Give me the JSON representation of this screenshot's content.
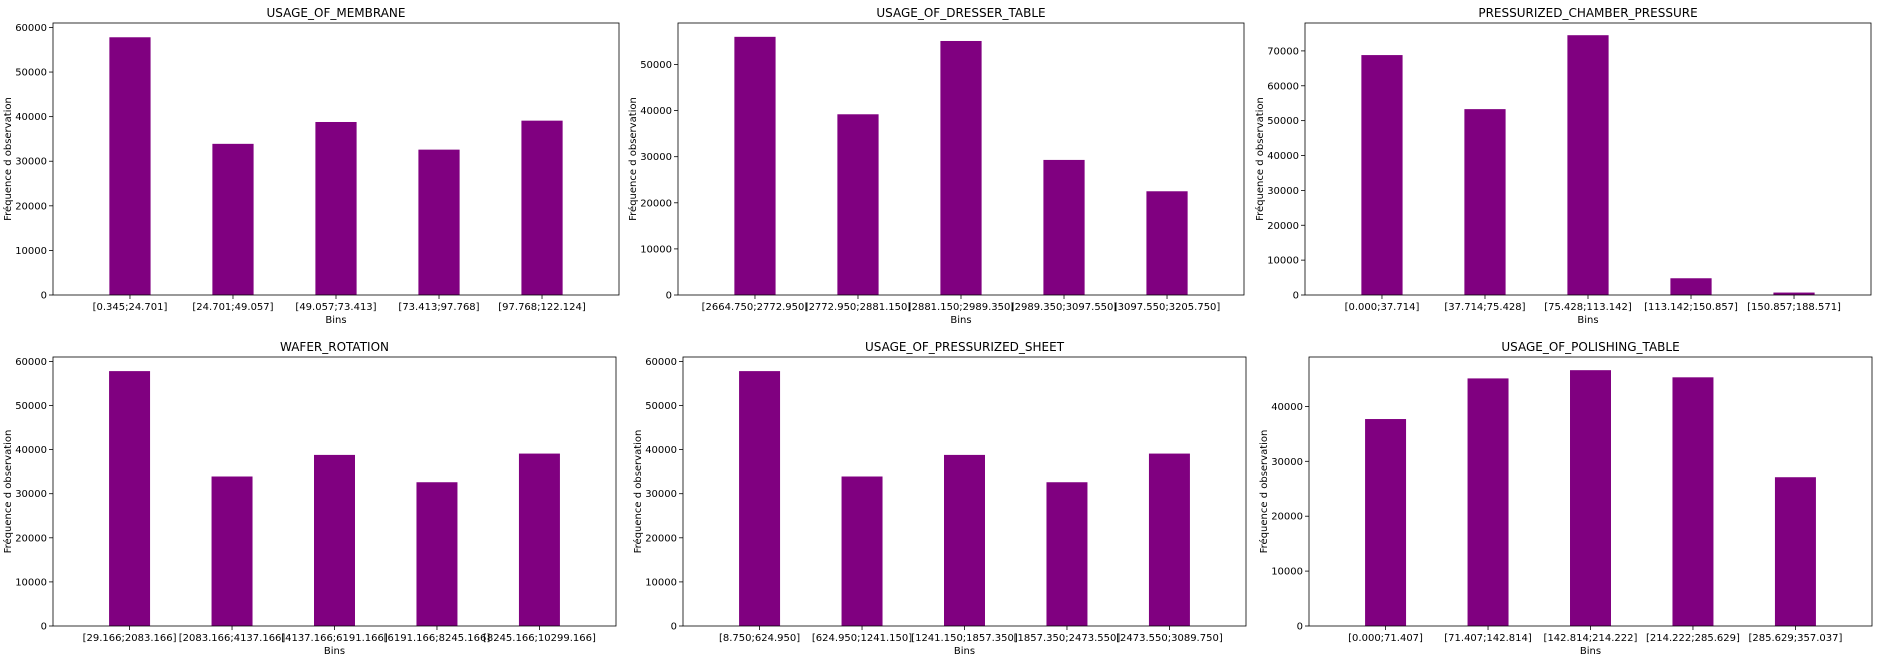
{
  "chart_data": [
    {
      "type": "bar",
      "title": "USAGE_OF_MEMBRANE",
      "xlabel": "Bins",
      "ylabel": "Fréquence d observation",
      "ylim": [
        0,
        61000
      ],
      "yticks": [
        0,
        10000,
        20000,
        30000,
        40000,
        50000,
        60000
      ],
      "categories": [
        "[0.345;24.701]",
        "[24.701;49.057]",
        "[49.057;73.413]",
        "[73.413;97.768]",
        "[97.768;122.124]"
      ],
      "values": [
        57800,
        33900,
        38800,
        32600,
        39100
      ],
      "color": "#800080"
    },
    {
      "type": "bar",
      "title": "USAGE_OF_DRESSER_TABLE",
      "xlabel": "Bins",
      "ylabel": "Fréquence d observation",
      "ylim": [
        0,
        59000
      ],
      "yticks": [
        0,
        10000,
        20000,
        30000,
        40000,
        50000
      ],
      "categories": [
        "[2664.750;2772.950]",
        "[2772.950;2881.150]",
        "[2881.150;2989.350]",
        "[2989.350;3097.550]",
        "[3097.550;3205.750]"
      ],
      "values": [
        56000,
        39200,
        55100,
        29300,
        22500
      ],
      "color": "#800080"
    },
    {
      "type": "bar",
      "title": "PRESSURIZED_CHAMBER_PRESSURE",
      "xlabel": "Bins",
      "ylabel": "Fréquence d observation",
      "ylim": [
        0,
        78000
      ],
      "yticks": [
        0,
        10000,
        20000,
        30000,
        40000,
        50000,
        60000,
        70000
      ],
      "categories": [
        "[0.000;37.714]",
        "[37.714;75.428]",
        "[75.428;113.142]",
        "[113.142;150.857]",
        "[150.857;188.571]"
      ],
      "values": [
        68800,
        53300,
        74500,
        4800,
        700
      ],
      "color": "#800080"
    },
    {
      "type": "bar",
      "title": "WAFER_ROTATION",
      "xlabel": "Bins",
      "ylabel": "Fréquence d observation",
      "ylim": [
        0,
        61000
      ],
      "yticks": [
        0,
        10000,
        20000,
        30000,
        40000,
        50000,
        60000
      ],
      "categories": [
        "[29.166;2083.166]",
        "[2083.166;4137.166]",
        "[4137.166;6191.166]",
        "[6191.166;8245.166]",
        "[8245.166;10299.166]"
      ],
      "values": [
        57800,
        33900,
        38800,
        32600,
        39100
      ],
      "color": "#800080"
    },
    {
      "type": "bar",
      "title": "USAGE_OF_PRESSURIZED_SHEET",
      "xlabel": "Bins",
      "ylabel": "Fréquence d observation",
      "ylim": [
        0,
        61000
      ],
      "yticks": [
        0,
        10000,
        20000,
        30000,
        40000,
        50000,
        60000
      ],
      "categories": [
        "[8.750;624.950]",
        "[624.950;1241.150]",
        "[1241.150;1857.350]",
        "[1857.350;2473.550]",
        "[2473.550;3089.750]"
      ],
      "values": [
        57800,
        33900,
        38800,
        32600,
        39100
      ],
      "color": "#800080"
    },
    {
      "type": "bar",
      "title": "USAGE_OF_POLISHING_TABLE",
      "xlabel": "Bins",
      "ylabel": "Fréquence d observation",
      "ylim": [
        0,
        49000
      ],
      "yticks": [
        0,
        10000,
        20000,
        30000,
        40000
      ],
      "categories": [
        "[0.000;71.407]",
        "[71.407;142.814]",
        "[142.814;214.222]",
        "[214.222;285.629]",
        "[285.629;357.037]"
      ],
      "values": [
        37700,
        45100,
        46600,
        45300,
        27100
      ],
      "color": "#800080"
    }
  ]
}
